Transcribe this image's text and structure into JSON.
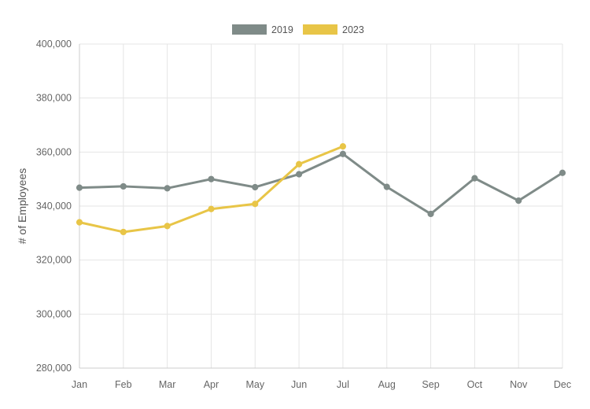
{
  "chart_data": {
    "type": "line",
    "categories": [
      "Jan",
      "Feb",
      "Mar",
      "Apr",
      "May",
      "Jun",
      "Jul",
      "Aug",
      "Sep",
      "Oct",
      "Nov",
      "Dec"
    ],
    "series": [
      {
        "name": "2019",
        "color": "#7f8b88",
        "values": [
          346800,
          347300,
          346600,
          350000,
          347000,
          351800,
          359300,
          347100,
          337100,
          350300,
          342000,
          352300
        ]
      },
      {
        "name": "2023",
        "color": "#e8c547",
        "values": [
          334000,
          330400,
          332600,
          338900,
          340800,
          355500,
          362100,
          null,
          null,
          null,
          null,
          null
        ]
      }
    ],
    "yticks": [
      "280,000",
      "300,000",
      "320,000",
      "340,000",
      "360,000",
      "380,000",
      "400,000"
    ],
    "ylim": [
      280000,
      400000
    ],
    "ylabel": "# of Employees",
    "xlabel": "",
    "title": "",
    "legend_position": "top-center",
    "grid": true
  }
}
